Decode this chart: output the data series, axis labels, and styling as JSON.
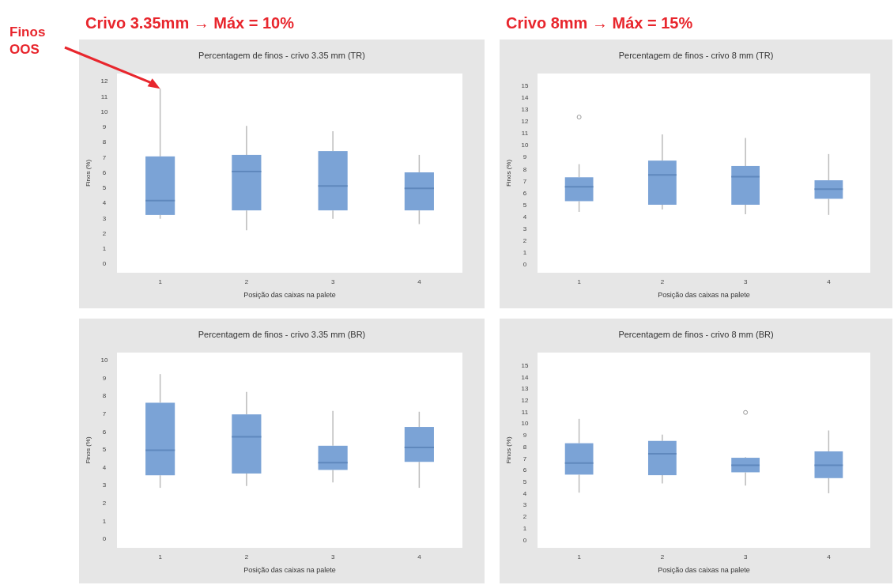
{
  "chart_data": [
    {
      "type": "box",
      "title": "Percentagem de finos - crivo 3.35 mm (TR)",
      "xlabel": "Posição das caixas na palete",
      "ylabel": "Finos (%)",
      "categories": [
        "1",
        "2",
        "3",
        "4"
      ],
      "ylim": [
        -0.6,
        12.5
      ],
      "yticks": [
        0,
        1,
        2,
        3,
        4,
        5,
        6,
        7,
        8,
        9,
        10,
        11,
        12
      ],
      "annotations": [
        "Crivo 3.35mm → Máx = 10%",
        "Finos OOS"
      ],
      "series": [
        {
          "color": "#7ba3d6",
          "boxes": [
            {
              "low": 2.95,
              "q1": 3.2,
              "median": 4.15,
              "q3": 7.05,
              "high": 11.5
            },
            {
              "low": 2.2,
              "q1": 3.5,
              "median": 6.05,
              "q3": 7.15,
              "high": 9.05
            },
            {
              "low": 2.95,
              "q1": 3.5,
              "median": 5.1,
              "q3": 7.4,
              "high": 8.7
            },
            {
              "low": 2.6,
              "q1": 3.5,
              "median": 4.95,
              "q3": 6.0,
              "high": 7.15
            }
          ]
        }
      ]
    },
    {
      "type": "box",
      "title": "Percentagem de finos - crivo 8 mm (TR)",
      "xlabel": "Posição das caixas na palete",
      "ylabel": "Finos (%)",
      "categories": [
        "1",
        "2",
        "3",
        "4"
      ],
      "ylim": [
        -0.7,
        16
      ],
      "yticks": [
        0,
        1,
        2,
        3,
        4,
        5,
        6,
        7,
        8,
        9,
        10,
        11,
        12,
        13,
        14,
        15
      ],
      "annotations": [
        "Crivo 8mm → Máx = 15%"
      ],
      "series": [
        {
          "color": "#7ba3d6",
          "boxes": [
            {
              "low": 4.4,
              "q1": 5.3,
              "median": 6.5,
              "q3": 7.3,
              "high": 8.4,
              "outliers": [
                12.35
              ]
            },
            {
              "low": 4.6,
              "q1": 5.0,
              "median": 7.5,
              "q3": 8.7,
              "high": 10.9
            },
            {
              "low": 4.2,
              "q1": 5.0,
              "median": 7.35,
              "q3": 8.25,
              "high": 10.6
            },
            {
              "low": 4.15,
              "q1": 5.5,
              "median": 6.3,
              "q3": 7.05,
              "high": 9.25
            }
          ]
        }
      ]
    },
    {
      "type": "box",
      "title": "Percentagem de finos - crivo 3.35 mm (BR)",
      "xlabel": "Posição das caixas na palete",
      "ylabel": "Finos (%)",
      "categories": [
        "1",
        "2",
        "3",
        "4"
      ],
      "ylim": [
        -0.5,
        10.4
      ],
      "yticks": [
        0,
        1,
        2,
        3,
        4,
        5,
        6,
        7,
        8,
        9,
        10
      ],
      "series": [
        {
          "color": "#7ba3d6",
          "boxes": [
            {
              "low": 2.85,
              "q1": 3.55,
              "median": 4.95,
              "q3": 7.6,
              "high": 9.2
            },
            {
              "low": 2.95,
              "q1": 3.65,
              "median": 5.7,
              "q3": 6.95,
              "high": 8.2
            },
            {
              "low": 3.15,
              "q1": 3.85,
              "median": 4.25,
              "q3": 5.2,
              "high": 7.15
            },
            {
              "low": 2.85,
              "q1": 4.3,
              "median": 5.1,
              "q3": 6.25,
              "high": 7.1
            }
          ]
        }
      ]
    },
    {
      "type": "box",
      "title": "Percentagem de finos - crivo 8 mm (BR)",
      "xlabel": "Posição das caixas na palete",
      "ylabel": "Finos (%)",
      "categories": [
        "1",
        "2",
        "3",
        "4"
      ],
      "ylim": [
        -0.7,
        16.1
      ],
      "yticks": [
        0,
        1,
        2,
        3,
        4,
        5,
        6,
        7,
        8,
        9,
        10,
        11,
        12,
        13,
        14,
        15
      ],
      "series": [
        {
          "color": "#7ba3d6",
          "boxes": [
            {
              "low": 4.05,
              "q1": 5.6,
              "median": 6.6,
              "q3": 8.3,
              "high": 10.4
            },
            {
              "low": 4.85,
              "q1": 5.55,
              "median": 7.4,
              "q3": 8.5,
              "high": 9.05
            },
            {
              "low": 4.65,
              "q1": 5.8,
              "median": 6.4,
              "q3": 7.05,
              "high": 7.1,
              "outliers": [
                10.95
              ]
            },
            {
              "low": 4.0,
              "q1": 5.3,
              "median": 6.4,
              "q3": 7.6,
              "high": 9.4
            }
          ]
        }
      ]
    }
  ]
}
